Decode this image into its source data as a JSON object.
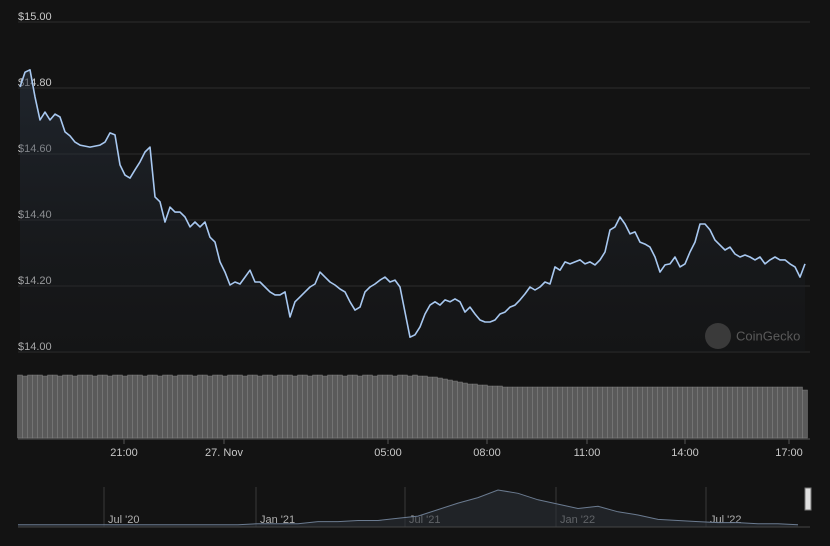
{
  "chart_data": {
    "type": "line",
    "color": "#a8c8f0",
    "grid": true,
    "ylim": [
      14,
      15
    ],
    "yticks": [
      {
        "value": 15,
        "label": "$15.00"
      },
      {
        "value": 14.8,
        "label": "$14.80"
      },
      {
        "value": 14.6,
        "label": "$14.60"
      },
      {
        "value": 14.4,
        "label": "$14.40"
      },
      {
        "value": 14.2,
        "label": "$14.20"
      },
      {
        "value": 14,
        "label": "$14.00"
      }
    ],
    "xlim": [
      -0.4,
      158
    ],
    "xticks": [
      {
        "value": 20.8,
        "label": "21:00"
      },
      {
        "value": 40.8,
        "label": "27. Nov"
      },
      {
        "value": 73.6,
        "label": "05:00"
      },
      {
        "value": 93.4,
        "label": "08:00"
      },
      {
        "value": 113.4,
        "label": "11:00"
      },
      {
        "value": 133,
        "label": "14:00"
      },
      {
        "value": 153.8,
        "label": "17:00"
      }
    ],
    "values": [
      14.803,
      14.848,
      14.855,
      14.773,
      14.703,
      14.727,
      14.703,
      14.721,
      14.712,
      14.667,
      14.655,
      14.636,
      14.627,
      14.624,
      14.621,
      14.624,
      14.627,
      14.636,
      14.664,
      14.658,
      14.567,
      14.536,
      14.527,
      14.552,
      14.576,
      14.606,
      14.621,
      14.47,
      14.455,
      14.394,
      14.439,
      14.424,
      14.424,
      14.409,
      14.379,
      14.394,
      14.379,
      14.394,
      14.348,
      14.333,
      14.273,
      14.242,
      14.203,
      14.212,
      14.206,
      14.227,
      14.248,
      14.212,
      14.212,
      14.197,
      14.182,
      14.173,
      14.173,
      14.182,
      14.106,
      14.152,
      14.167,
      14.182,
      14.197,
      14.206,
      14.242,
      14.227,
      14.212,
      14.203,
      14.191,
      14.182,
      14.152,
      14.127,
      14.136,
      14.182,
      14.197,
      14.206,
      14.218,
      14.227,
      14.212,
      14.218,
      14.197,
      14.121,
      14.045,
      14.052,
      14.076,
      14.115,
      14.142,
      14.152,
      14.142,
      14.158,
      14.152,
      14.161,
      14.152,
      14.121,
      14.136,
      14.115,
      14.097,
      14.091,
      14.091,
      14.097,
      14.115,
      14.121,
      14.136,
      14.142,
      14.158,
      14.176,
      14.197,
      14.188,
      14.197,
      14.212,
      14.206,
      14.258,
      14.248,
      14.273,
      14.267,
      14.273,
      14.279,
      14.267,
      14.273,
      14.264,
      14.279,
      14.303,
      14.37,
      14.379,
      14.409,
      14.388,
      14.358,
      14.364,
      14.333,
      14.327,
      14.318,
      14.288,
      14.242,
      14.264,
      14.267,
      14.288,
      14.258,
      14.267,
      14.303,
      14.333,
      14.388,
      14.388,
      14.37,
      14.339,
      14.324,
      14.309,
      14.318,
      14.297,
      14.288,
      14.294,
      14.288,
      14.279,
      14.288,
      14.267,
      14.279,
      14.288,
      14.279,
      14.279,
      14.267,
      14.258,
      14.227,
      14.267
    ],
    "volume": [
      63,
      62,
      63,
      63,
      63,
      62,
      63,
      63,
      62,
      63,
      63,
      62,
      63,
      63,
      63,
      62,
      63,
      63,
      62,
      63,
      63,
      62,
      63,
      63,
      63,
      62,
      63,
      63,
      62,
      63,
      63,
      62,
      63,
      63,
      63,
      62,
      63,
      63,
      62,
      63,
      63,
      62,
      63,
      63,
      63,
      62,
      63,
      63,
      62,
      63,
      63,
      62,
      63,
      63,
      63,
      62,
      63,
      63,
      62,
      63,
      63,
      62,
      63,
      63,
      63,
      62,
      63,
      63,
      62,
      63,
      63,
      62,
      63,
      63,
      63,
      62,
      63,
      63,
      62,
      63,
      62,
      62,
      61,
      61,
      60,
      59,
      58,
      57,
      56,
      55,
      54,
      54,
      53,
      53,
      52,
      52,
      52,
      51,
      51,
      51,
      51,
      51,
      51,
      51,
      51,
      51,
      51,
      51,
      51,
      51,
      51,
      51,
      51,
      51,
      51,
      51,
      51,
      51,
      51,
      51,
      51,
      51,
      51,
      51,
      51,
      51,
      51,
      51,
      51,
      51,
      51,
      51,
      51,
      51,
      51,
      51,
      51,
      51,
      51,
      51,
      51,
      51,
      51,
      51,
      51,
      51,
      51,
      51,
      51,
      51,
      51,
      51,
      51,
      51,
      51,
      51,
      51,
      48
    ],
    "watermark": "CoinGecko",
    "navigator": {
      "values": [
        2,
        2,
        2,
        2,
        2,
        2,
        2,
        2,
        2,
        2,
        2,
        2,
        3,
        3,
        3,
        5,
        5,
        6,
        6,
        8,
        10,
        16,
        22,
        27,
        34,
        31,
        25,
        21,
        17,
        19,
        14,
        11,
        7,
        6,
        5,
        4,
        4,
        3,
        3,
        2
      ],
      "xlim": [
        0,
        39.6
      ],
      "xticks": [
        {
          "value": 4.3,
          "label": "Jul '20"
        },
        {
          "value": 11.9,
          "label": "Jan '21"
        },
        {
          "value": 19.35,
          "label": "Jul '21"
        },
        {
          "value": 26.9,
          "label": "Jan '22"
        },
        {
          "value": 34.4,
          "label": "Jul '22"
        }
      ]
    }
  }
}
